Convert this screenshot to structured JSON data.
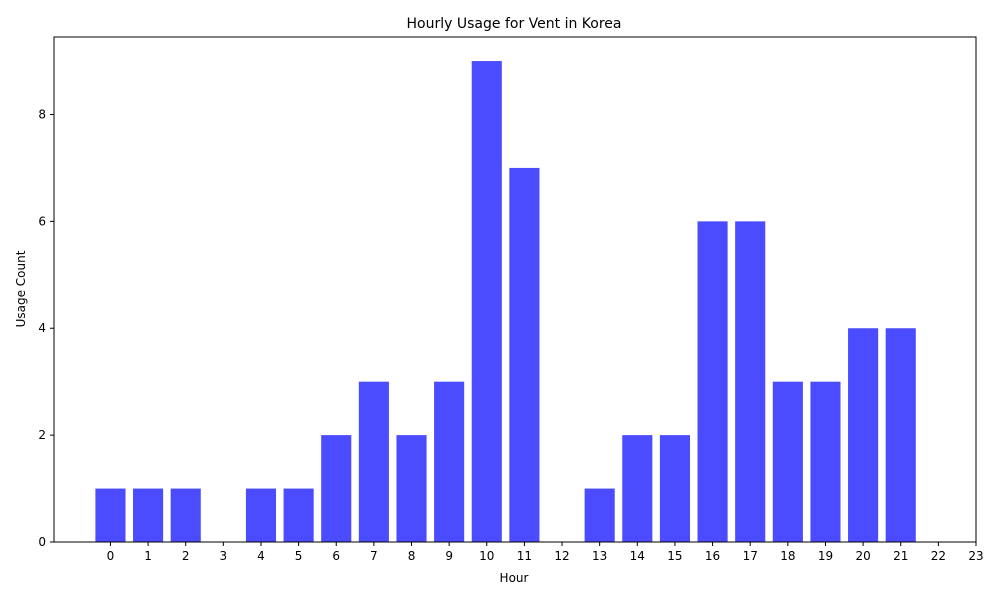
{
  "chart_data": {
    "type": "bar",
    "title": "Hourly Usage for Vent in Korea",
    "xlabel": "Hour",
    "ylabel": "Usage Count",
    "categories": [
      0,
      1,
      2,
      3,
      4,
      5,
      6,
      7,
      8,
      9,
      10,
      11,
      12,
      13,
      14,
      15,
      16,
      17,
      18,
      19,
      20,
      21,
      22,
      23
    ],
    "values": [
      1,
      1,
      1,
      0,
      1,
      1,
      2,
      3,
      2,
      3,
      9,
      7,
      0,
      1,
      2,
      2,
      6,
      6,
      3,
      3,
      4,
      4,
      0,
      0
    ],
    "x_ticks": [
      "0",
      "1",
      "2",
      "3",
      "4",
      "5",
      "6",
      "7",
      "8",
      "9",
      "10",
      "11",
      "12",
      "13",
      "14",
      "15",
      "16",
      "17",
      "18",
      "19",
      "20",
      "21",
      "22",
      "23"
    ],
    "y_ticks": [
      0,
      2,
      4,
      6,
      8
    ],
    "ylim": [
      0,
      9.45
    ],
    "xlim": [
      -1.5,
      23
    ],
    "bar_color": "#4b4bff",
    "grid": false,
    "legend": "none"
  }
}
